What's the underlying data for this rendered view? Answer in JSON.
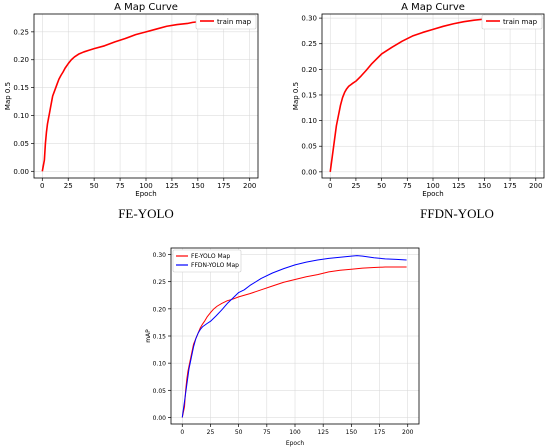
{
  "chart_data": [
    {
      "type": "line",
      "title": "A Map Curve",
      "caption": "FE-YOLO",
      "xlabel": "Epoch",
      "ylabel": "Map 0.5",
      "xlim": [
        -8,
        208
      ],
      "ylim": [
        -0.012,
        0.282
      ],
      "xticks": [
        0,
        25,
        50,
        75,
        100,
        125,
        150,
        175,
        200
      ],
      "yticks": [
        0.0,
        0.05,
        0.1,
        0.15,
        0.2,
        0.25
      ],
      "ytick_labels": [
        "0.00",
        "0.05",
        "0.10",
        "0.15",
        "0.20",
        "0.25"
      ],
      "grid": true,
      "legend_position": "top-right",
      "series": [
        {
          "name": "train map",
          "color": "#ff0000",
          "x": [
            0,
            2,
            3,
            4,
            5,
            6,
            7,
            8,
            9,
            10,
            12,
            14,
            16,
            18,
            20,
            22,
            25,
            28,
            31,
            35,
            40,
            45,
            50,
            60,
            70,
            80,
            90,
            100,
            110,
            120,
            130,
            140,
            145,
            150,
            155,
            160
          ],
          "y": [
            0.0,
            0.02,
            0.05,
            0.07,
            0.085,
            0.095,
            0.105,
            0.115,
            0.125,
            0.135,
            0.145,
            0.155,
            0.165,
            0.172,
            0.178,
            0.185,
            0.193,
            0.2,
            0.205,
            0.21,
            0.214,
            0.217,
            0.22,
            0.225,
            0.232,
            0.238,
            0.245,
            0.25,
            0.255,
            0.26,
            0.263,
            0.265,
            0.267,
            0.268,
            0.268,
            0.268
          ]
        }
      ]
    },
    {
      "type": "line",
      "title": "A Map Curve",
      "caption": "FFDN-YOLO",
      "xlabel": "Epoch",
      "ylabel": "Map 0.5",
      "xlim": [
        -8,
        208
      ],
      "ylim": [
        -0.012,
        0.308
      ],
      "xticks": [
        0,
        25,
        50,
        75,
        100,
        125,
        150,
        175,
        200
      ],
      "yticks": [
        0.0,
        0.05,
        0.1,
        0.15,
        0.2,
        0.25,
        0.3
      ],
      "ytick_labels": [
        "0.00",
        "0.05",
        "0.10",
        "0.15",
        "0.20",
        "0.25",
        "0.30"
      ],
      "grid": true,
      "legend_position": "top-right",
      "series": [
        {
          "name": "train map",
          "color": "#ff0000",
          "x": [
            0,
            2,
            4,
            6,
            8,
            10,
            12,
            14,
            16,
            18,
            20,
            22,
            25,
            30,
            35,
            40,
            45,
            50,
            60,
            70,
            80,
            90,
            100,
            110,
            120,
            130,
            140,
            150,
            155,
            160
          ],
          "y": [
            0.0,
            0.03,
            0.06,
            0.09,
            0.11,
            0.13,
            0.145,
            0.155,
            0.162,
            0.167,
            0.17,
            0.173,
            0.177,
            0.187,
            0.198,
            0.21,
            0.22,
            0.23,
            0.243,
            0.255,
            0.265,
            0.272,
            0.278,
            0.284,
            0.289,
            0.293,
            0.296,
            0.298,
            0.299,
            0.299
          ]
        }
      ]
    },
    {
      "type": "line",
      "title": "",
      "xlabel": "Epoch",
      "ylabel": "mAP",
      "xlim": [
        -10,
        210
      ],
      "ylim": [
        -0.012,
        0.312
      ],
      "xticks": [
        0,
        25,
        50,
        75,
        100,
        125,
        150,
        175,
        200
      ],
      "yticks": [
        0.0,
        0.05,
        0.1,
        0.15,
        0.2,
        0.25,
        0.3
      ],
      "ytick_labels": [
        "0.00",
        "0.05",
        "0.10",
        "0.15",
        "0.20",
        "0.25",
        "0.30"
      ],
      "grid": true,
      "legend_position": "top-left",
      "series": [
        {
          "name": "FE-YOLO Map",
          "color": "#ff0000",
          "x": [
            0,
            2,
            3,
            4,
            5,
            6,
            7,
            8,
            10,
            12,
            14,
            16,
            18,
            20,
            22,
            25,
            28,
            31,
            35,
            40,
            45,
            50,
            60,
            70,
            80,
            90,
            100,
            110,
            120,
            130,
            140,
            150,
            160,
            170,
            180,
            190,
            199
          ],
          "y": [
            0.0,
            0.02,
            0.05,
            0.07,
            0.085,
            0.095,
            0.105,
            0.115,
            0.135,
            0.145,
            0.155,
            0.165,
            0.172,
            0.178,
            0.185,
            0.193,
            0.2,
            0.205,
            0.21,
            0.215,
            0.218,
            0.222,
            0.228,
            0.235,
            0.242,
            0.249,
            0.254,
            0.259,
            0.263,
            0.268,
            0.271,
            0.273,
            0.275,
            0.276,
            0.277,
            0.277,
            0.277
          ]
        },
        {
          "name": "FFDN-YOLO Map",
          "color": "#0000ff",
          "x": [
            0,
            2,
            4,
            6,
            8,
            10,
            12,
            14,
            16,
            18,
            20,
            22,
            25,
            30,
            35,
            40,
            45,
            50,
            55,
            60,
            70,
            80,
            90,
            100,
            110,
            120,
            130,
            140,
            150,
            155,
            160,
            170,
            180,
            190,
            199
          ],
          "y": [
            0.0,
            0.03,
            0.06,
            0.09,
            0.11,
            0.13,
            0.145,
            0.155,
            0.162,
            0.167,
            0.17,
            0.173,
            0.177,
            0.187,
            0.198,
            0.21,
            0.22,
            0.23,
            0.235,
            0.243,
            0.256,
            0.266,
            0.274,
            0.281,
            0.286,
            0.29,
            0.293,
            0.295,
            0.297,
            0.298,
            0.297,
            0.294,
            0.292,
            0.291,
            0.29
          ]
        }
      ]
    }
  ]
}
